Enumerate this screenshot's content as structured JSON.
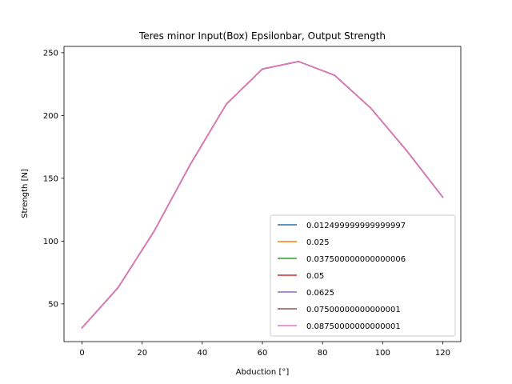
{
  "chart_data": {
    "type": "line",
    "title": "Teres minor Input(Box) Epsilonbar, Output Strength",
    "xlabel": "Abduction [°]",
    "ylabel": "Strength [N]",
    "xlim": [
      -6,
      126
    ],
    "ylim": [
      20,
      255
    ],
    "x_ticks": [
      0,
      20,
      40,
      60,
      80,
      100,
      120
    ],
    "y_ticks": [
      50,
      100,
      150,
      200,
      250
    ],
    "x": [
      0,
      12,
      24,
      36,
      48,
      60,
      72,
      84,
      96,
      108,
      120
    ],
    "grid": false,
    "legend_position": "lower-right",
    "series": [
      {
        "name": "0.012499999999999997",
        "color": "#1f77b4",
        "values": [
          31,
          63,
          108,
          161,
          209,
          237,
          243,
          232,
          206,
          172,
          135
        ]
      },
      {
        "name": "0.025",
        "color": "#ff7f0e",
        "values": [
          31,
          63,
          108,
          161,
          209,
          237,
          243,
          232,
          206,
          172,
          135
        ]
      },
      {
        "name": "0.037500000000000006",
        "color": "#2ca02c",
        "values": [
          31,
          63,
          108,
          161,
          209,
          237,
          243,
          232,
          206,
          172,
          135
        ]
      },
      {
        "name": "0.05",
        "color": "#d62728",
        "values": [
          31,
          63,
          108,
          161,
          209,
          237,
          243,
          232,
          206,
          172,
          135
        ]
      },
      {
        "name": "0.0625",
        "color": "#9467bd",
        "values": [
          31,
          63,
          108,
          161,
          209,
          237,
          243,
          232,
          206,
          172,
          135
        ]
      },
      {
        "name": "0.07500000000000001",
        "color": "#8c564b",
        "values": [
          31,
          63,
          108,
          161,
          209,
          237,
          243,
          232,
          206,
          172,
          135
        ]
      },
      {
        "name": "0.08750000000000001",
        "color": "#e377c2",
        "values": [
          31,
          63,
          108,
          161,
          209,
          237,
          243,
          232,
          206,
          172,
          135
        ]
      }
    ]
  }
}
